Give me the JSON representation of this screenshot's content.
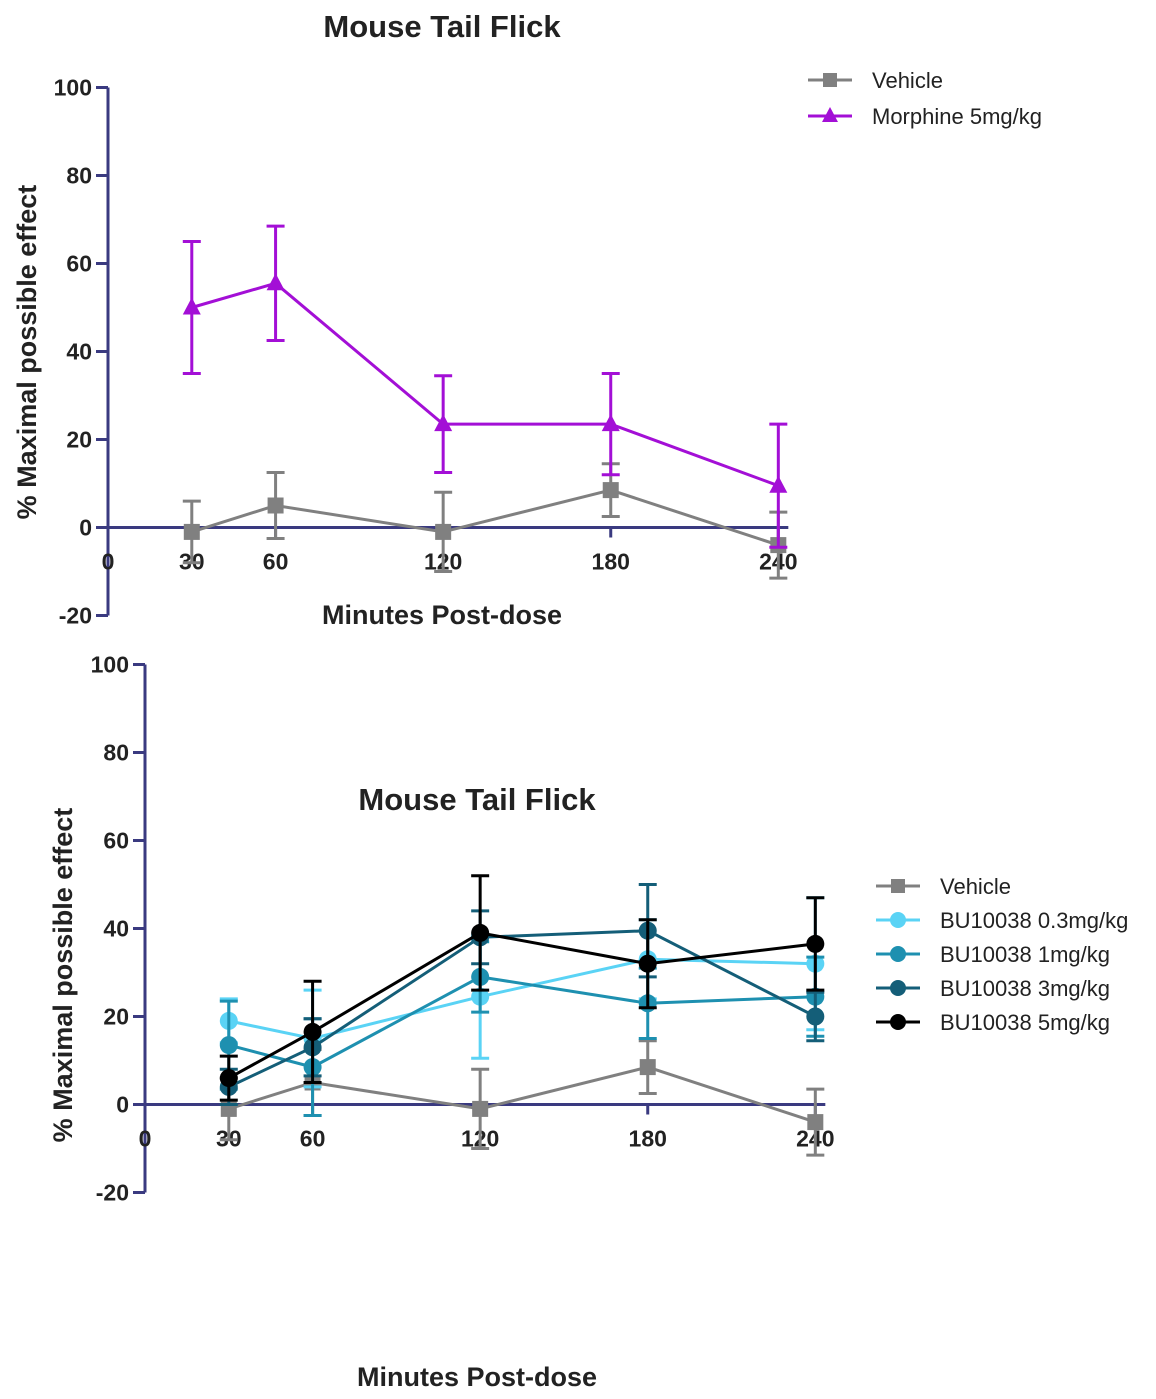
{
  "chart_data": [
    {
      "type": "line",
      "title": "Mouse Tail Flick",
      "xlabel": "Minutes  Post-dose",
      "ylabel": "% Maximal possible effect",
      "x_ticks": [
        0,
        30,
        60,
        120,
        180,
        240
      ],
      "x_tick_labels": [
        "0",
        "30",
        "60",
        "120",
        "180",
        "240"
      ],
      "y_ticks": [
        -20,
        0,
        20,
        40,
        60,
        80,
        100
      ],
      "y_tick_labels": [
        "-20",
        "0",
        "20",
        "40",
        "60",
        "80",
        "100"
      ],
      "xlim": [
        0,
        250
      ],
      "ylim": [
        -20,
        100
      ],
      "grid": false,
      "legend_position": "top-right",
      "x": [
        30,
        60,
        120,
        180,
        240
      ],
      "series": [
        {
          "name": "Vehicle",
          "color": "#808080",
          "marker": "square",
          "values": [
            -1,
            5,
            -1,
            8.5,
            -4
          ],
          "errors": [
            7,
            7.5,
            9,
            6,
            7.5
          ]
        },
        {
          "name": "Morphine 5mg/kg",
          "color": "#a30fd6",
          "marker": "triangle",
          "values": [
            50,
            55.5,
            23.5,
            23.5,
            9.5
          ],
          "errors": [
            15,
            13,
            11,
            11.5,
            14
          ]
        }
      ]
    },
    {
      "type": "line",
      "title": "Mouse Tail Flick",
      "xlabel": "Minutes  Post-dose",
      "ylabel": "% Maximal possible effect",
      "x_ticks": [
        0,
        30,
        60,
        120,
        180,
        240
      ],
      "x_tick_labels": [
        "0",
        "30",
        "60",
        "120",
        "180",
        "240"
      ],
      "y_ticks": [
        -20,
        0,
        20,
        40,
        60,
        80,
        100
      ],
      "y_tick_labels": [
        "-20",
        "0",
        "20",
        "40",
        "60",
        "80",
        "100"
      ],
      "xlim": [
        0,
        250
      ],
      "ylim": [
        -20,
        100
      ],
      "grid": false,
      "legend_position": "top-right",
      "x": [
        30,
        60,
        120,
        180,
        240
      ],
      "series": [
        {
          "name": "Vehicle",
          "color": "#808080",
          "marker": "square",
          "values": [
            -1,
            5,
            -1,
            8.5,
            -4
          ],
          "errors": [
            7,
            7.5,
            9,
            6,
            7.5
          ]
        },
        {
          "name": "BU10038 0.3mg/kg",
          "color": "#5ad3f5",
          "marker": "circle",
          "values": [
            19,
            15,
            24.5,
            33,
            32
          ],
          "errors": [
            5,
            11,
            14,
            9,
            15
          ]
        },
        {
          "name": "BU10038 1mg/kg",
          "color": "#1e90b0",
          "marker": "circle",
          "values": [
            13.5,
            8.5,
            29,
            23,
            24.5
          ],
          "errors": [
            10,
            11,
            8,
            8,
            9
          ]
        },
        {
          "name": "BU10038 3mg/kg",
          "color": "#145e78",
          "marker": "circle",
          "values": [
            4,
            13,
            38,
            39.5,
            20
          ],
          "errors": [
            4,
            6.5,
            6,
            10.5,
            5.5
          ]
        },
        {
          "name": "BU10038 5mg/kg",
          "color": "#000000",
          "marker": "circle",
          "values": [
            6,
            16.5,
            39,
            32,
            36.5
          ],
          "errors": [
            5,
            11.5,
            13,
            10,
            10.5
          ]
        }
      ]
    }
  ]
}
